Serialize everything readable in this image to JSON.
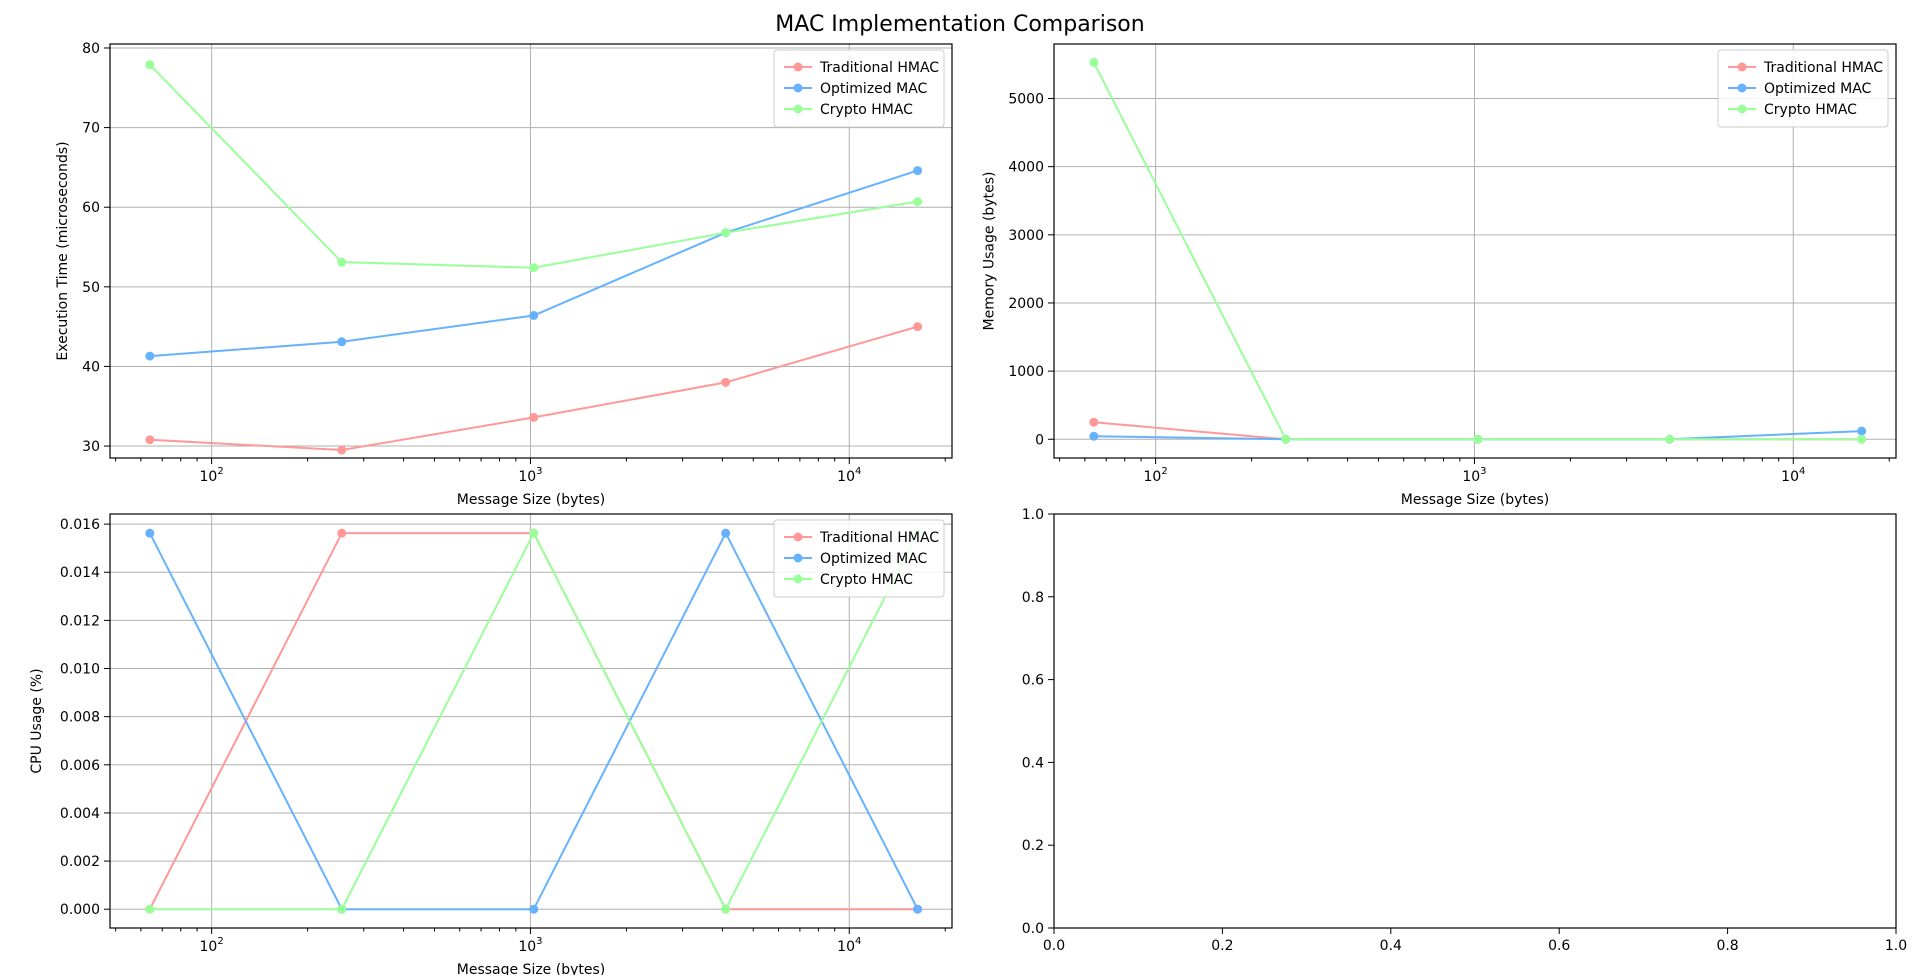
{
  "figure": {
    "title": "MAC Implementation Comparison"
  },
  "colors": {
    "traditional": "#ff9896",
    "optimized": "#66b2ff",
    "crypto": "#99ff99",
    "grid": "#b0b0b0",
    "axis": "#000000"
  },
  "chart_data": [
    {
      "type": "line",
      "id": "exec",
      "xscale": "log",
      "xlim": [
        48,
        21000
      ],
      "ylim": [
        28.5,
        80.5
      ],
      "yticks": [
        30,
        40,
        50,
        60,
        70,
        80
      ],
      "ytick_labels": [
        "30",
        "40",
        "50",
        "60",
        "70",
        "80"
      ],
      "xlabel": "Message Size (bytes)",
      "ylabel": "Execution Time (microseconds)",
      "grid": true,
      "legend": "top-right",
      "x": [
        64,
        256,
        1024,
        4096,
        16384
      ],
      "series": [
        {
          "name": "Traditional HMAC",
          "color": "#ff9896",
          "values": [
            30.8,
            29.5,
            33.6,
            38.0,
            45.0
          ]
        },
        {
          "name": "Optimized MAC",
          "color": "#66b2ff",
          "values": [
            41.3,
            43.1,
            46.4,
            56.8,
            64.6
          ]
        },
        {
          "name": "Crypto HMAC",
          "color": "#99ff99",
          "values": [
            77.9,
            53.1,
            52.4,
            56.8,
            60.7
          ]
        }
      ]
    },
    {
      "type": "line",
      "id": "mem",
      "xscale": "log",
      "xlim": [
        48,
        21000
      ],
      "ylim": [
        -275,
        5800
      ],
      "yticks": [
        0,
        1000,
        2000,
        3000,
        4000,
        5000
      ],
      "ytick_labels": [
        "0",
        "1000",
        "2000",
        "3000",
        "4000",
        "5000"
      ],
      "xlabel": "Message Size (bytes)",
      "ylabel": "Memory Usage (bytes)",
      "grid": true,
      "legend": "top-right",
      "x": [
        64,
        256,
        1024,
        4096,
        16384
      ],
      "series": [
        {
          "name": "Traditional HMAC",
          "color": "#ff9896",
          "values": [
            250,
            0,
            0,
            0,
            0
          ]
        },
        {
          "name": "Optimized MAC",
          "color": "#66b2ff",
          "values": [
            45,
            0,
            0,
            0,
            120
          ]
        },
        {
          "name": "Crypto HMAC",
          "color": "#99ff99",
          "values": [
            5530,
            0,
            0,
            0,
            0
          ]
        }
      ]
    },
    {
      "type": "line",
      "id": "cpu",
      "xscale": "log",
      "xlim": [
        48,
        21000
      ],
      "ylim": [
        -0.00078,
        0.01642
      ],
      "yticks": [
        0,
        0.002,
        0.004,
        0.006,
        0.008,
        0.01,
        0.012,
        0.014,
        0.016
      ],
      "ytick_labels": [
        "0.000",
        "0.002",
        "0.004",
        "0.006",
        "0.008",
        "0.010",
        "0.012",
        "0.014",
        "0.016"
      ],
      "xlabel": "Message Size (bytes)",
      "ylabel": "CPU Usage (%)",
      "grid": true,
      "legend": "top-right",
      "x": [
        64,
        256,
        1024,
        4096,
        16384
      ],
      "series": [
        {
          "name": "Traditional HMAC",
          "color": "#ff9896",
          "values": [
            0,
            0.015625,
            0.015625,
            0,
            0
          ]
        },
        {
          "name": "Optimized MAC",
          "color": "#66b2ff",
          "values": [
            0.015625,
            0,
            0,
            0.015625,
            0
          ]
        },
        {
          "name": "Crypto HMAC",
          "color": "#99ff99",
          "values": [
            0,
            0,
            0.015625,
            0,
            0.015625
          ]
        }
      ]
    },
    {
      "type": "line",
      "id": "empty",
      "xlim": [
        0,
        1
      ],
      "ylim": [
        0,
        1
      ],
      "xticks": [
        0,
        0.2,
        0.4,
        0.6,
        0.8,
        1.0
      ],
      "xtick_labels": [
        "0.0",
        "0.2",
        "0.4",
        "0.6",
        "0.8",
        "1.0"
      ],
      "yticks": [
        0,
        0.2,
        0.4,
        0.6,
        0.8,
        1.0
      ],
      "ytick_labels": [
        "0.0",
        "0.2",
        "0.4",
        "0.6",
        "0.8",
        "1.0"
      ],
      "grid": false,
      "series": []
    }
  ]
}
